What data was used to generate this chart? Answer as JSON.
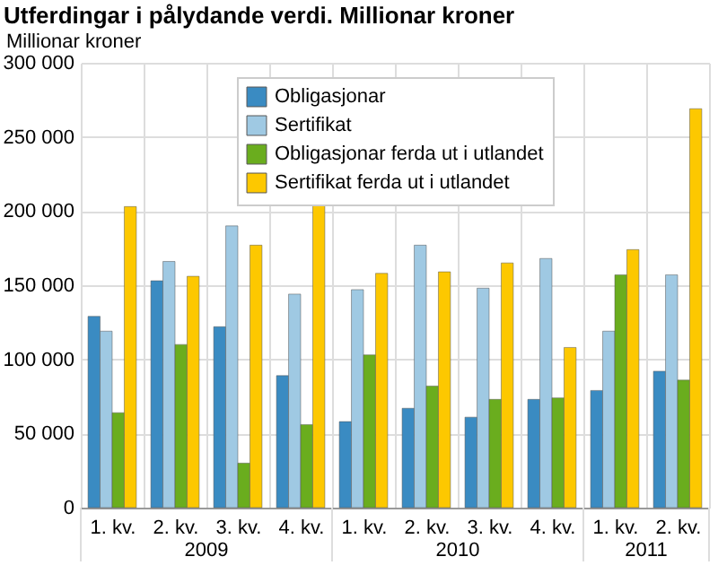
{
  "chart_data": {
    "type": "bar",
    "title": "Utferdingar i pålydande verdi. Millionar kroner",
    "ylabel": "Millionar kroner",
    "categories": [
      "1. kv.",
      "2. kv.",
      "3. kv.",
      "4. kv.",
      "1. kv.",
      "2. kv.",
      "3. kv.",
      "4. kv.",
      "1. kv.",
      "2. kv."
    ],
    "series": [
      {
        "name": "Obligasjonar",
        "color": "#3a8bc2",
        "values": [
          129000,
          153000,
          122000,
          89000,
          58000,
          67000,
          61000,
          73000,
          79000,
          92000
        ]
      },
      {
        "name": "Sertifikat",
        "color": "#9fc9e3",
        "values": [
          119000,
          166000,
          190000,
          144000,
          147000,
          177000,
          148000,
          168000,
          119000,
          157000
        ]
      },
      {
        "name": "Obligasjonar ferda ut i utlandet",
        "color": "#6aad1e",
        "values": [
          64000,
          110000,
          30000,
          56000,
          103000,
          82000,
          73000,
          74000,
          157000,
          86000
        ]
      },
      {
        "name": "Sertifikat ferda ut i utlandet",
        "color": "#fdc800",
        "values": [
          203000,
          156000,
          177000,
          205000,
          158000,
          159000,
          165000,
          108000,
          174000,
          269000
        ]
      }
    ],
    "ylim": [
      0,
      300000
    ],
    "yticks": [
      0,
      {
        "value": 50000,
        "label": "50 000"
      },
      {
        "value": 100000,
        "label": "100 000"
      },
      {
        "value": 150000,
        "label": "150 000"
      },
      {
        "value": 200000,
        "label": "200 000"
      },
      {
        "value": 250000,
        "label": "250 000"
      },
      {
        "value": 300000,
        "label": "300 000"
      }
    ],
    "annotations": [
      "2009",
      "2010",
      "2011"
    ],
    "grid": true,
    "legend": "top"
  }
}
